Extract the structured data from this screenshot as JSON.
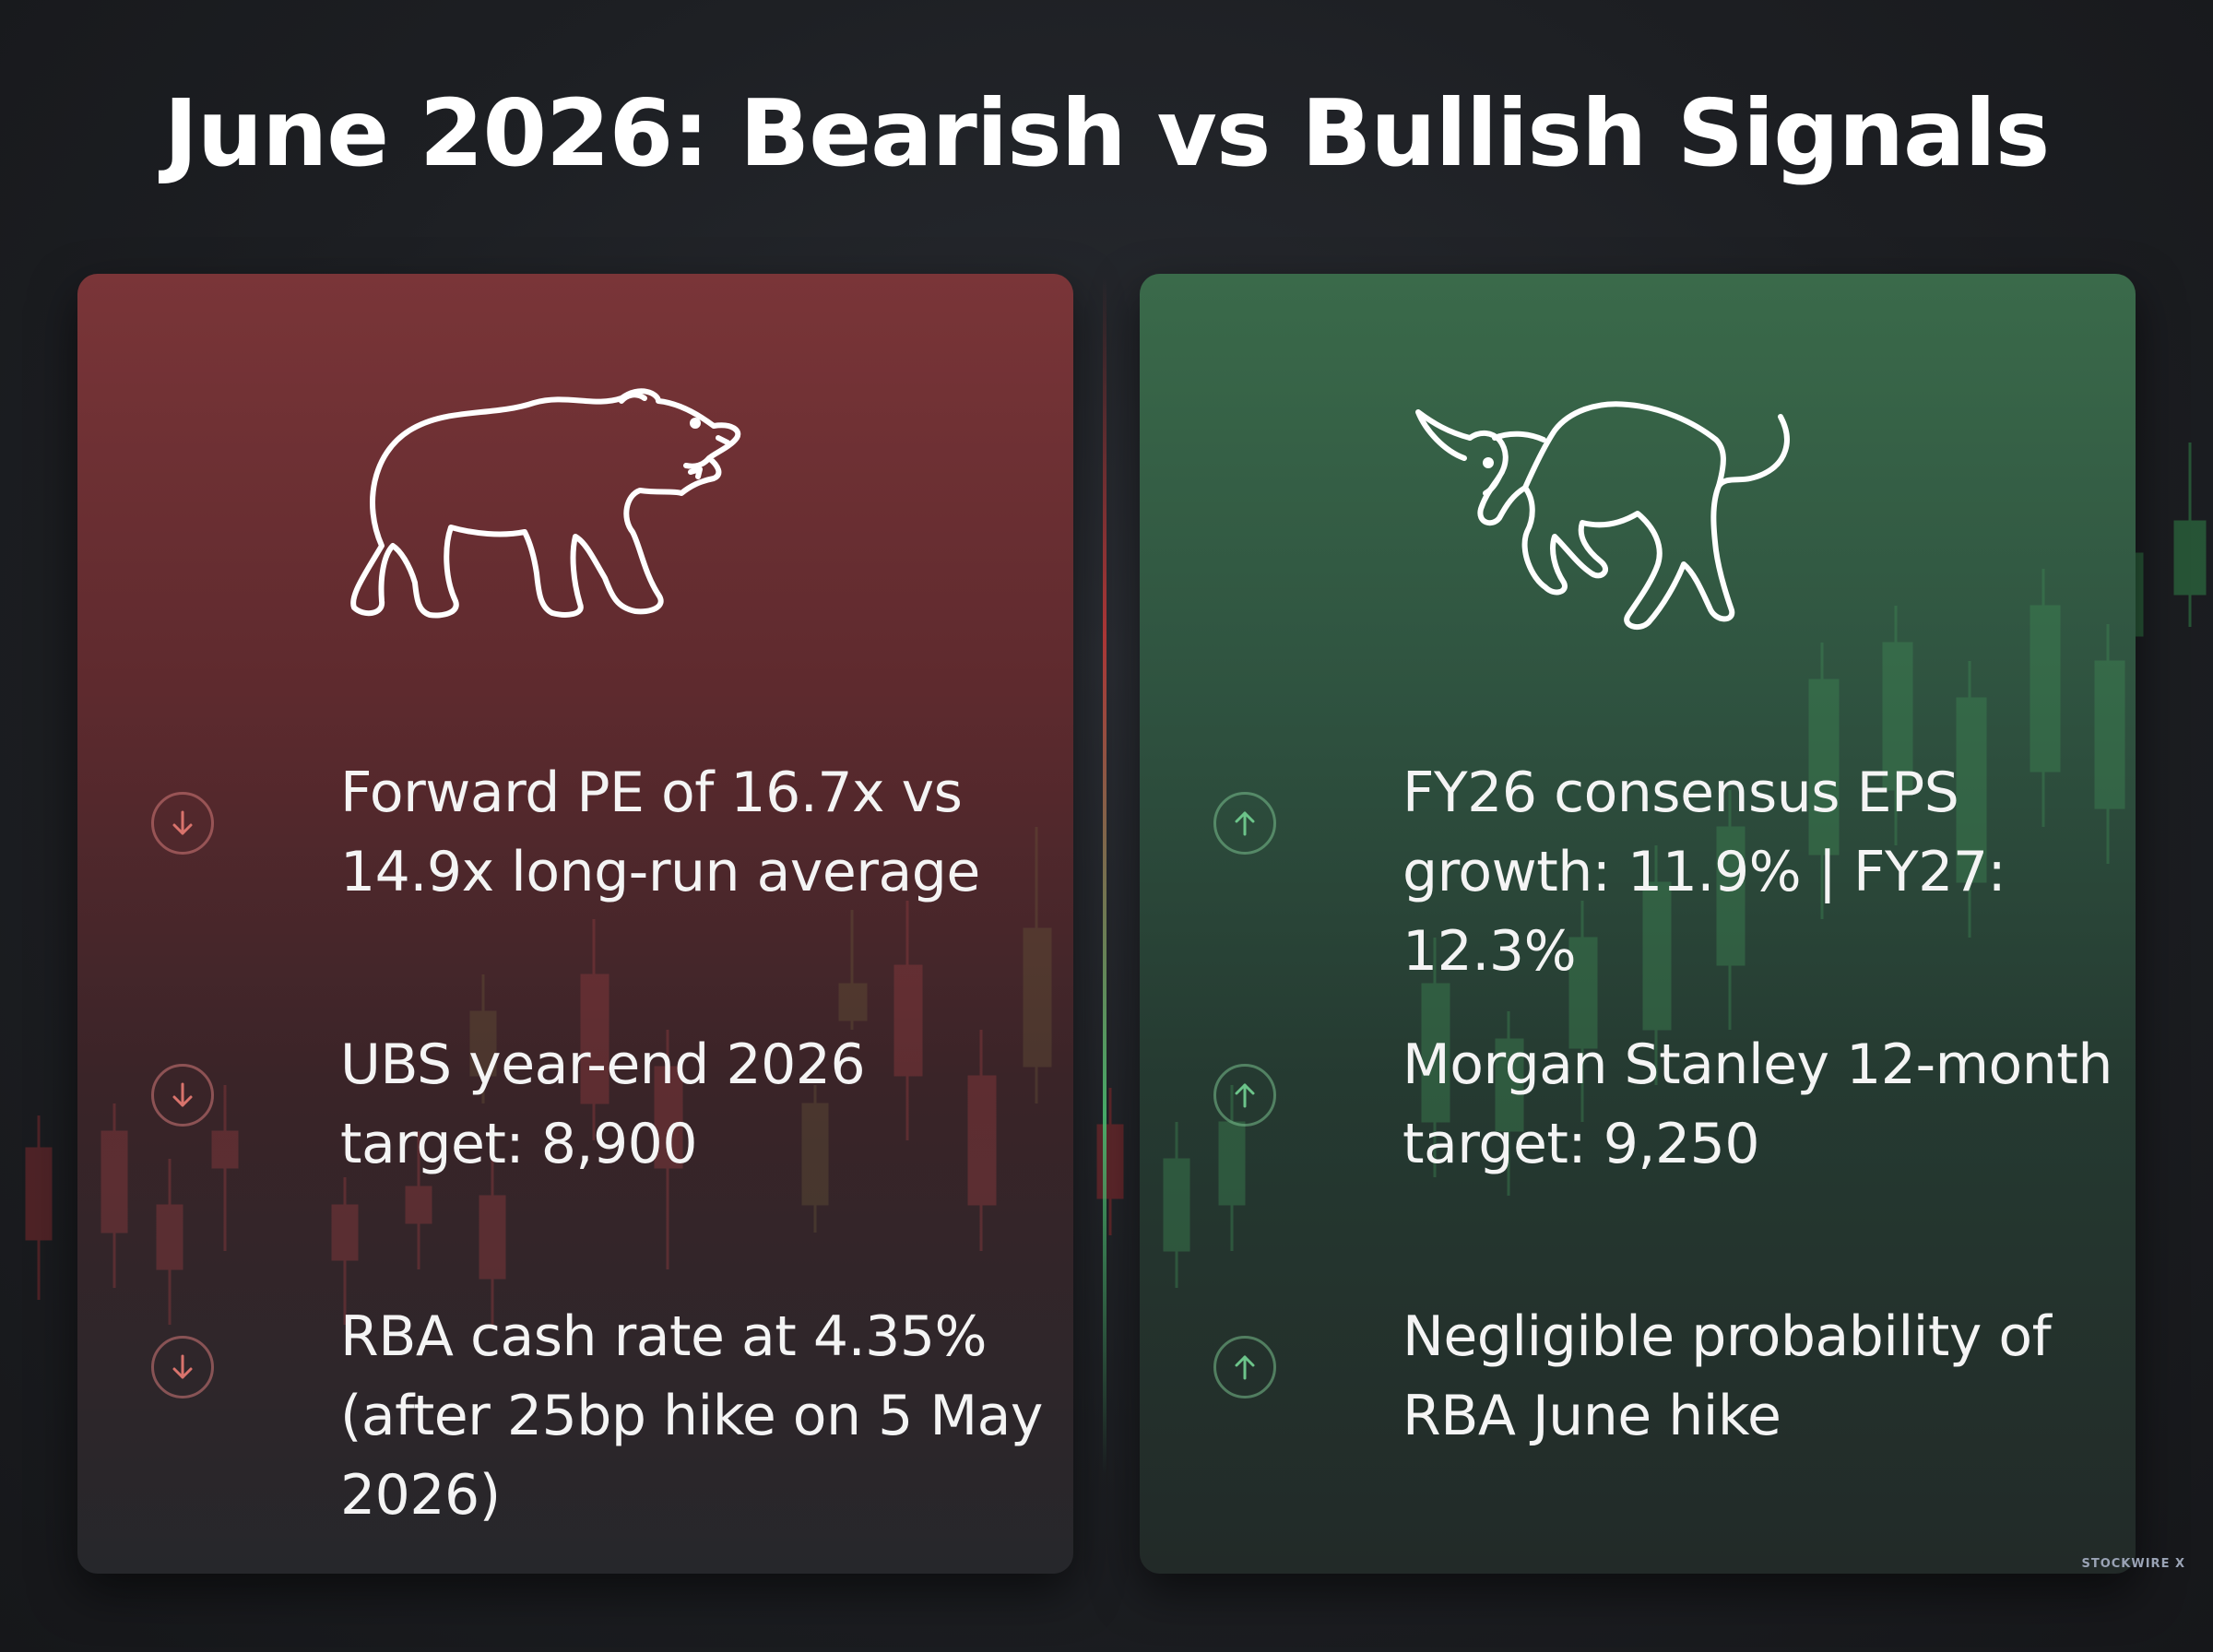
{
  "title": "June 2026: Bearish vs Bullish Signals",
  "colors": {
    "bear_accent": "#7a3538",
    "bull_accent": "#3a6a4a",
    "bear_icon": "#e07a72",
    "bull_icon": "#6cc48a",
    "background": "#1d1f23"
  },
  "bear": {
    "icon": "bear-outline-icon",
    "items": [
      {
        "icon": "arrow-down-icon",
        "text": "Forward PE of 16.7x vs 14.9x long-run average"
      },
      {
        "icon": "arrow-down-icon",
        "text": "UBS year-end 2026 target: 8,900"
      },
      {
        "icon": "arrow-down-icon",
        "text": "RBA cash rate at 4.35% (after 25bp hike on 5 May 2026)"
      }
    ]
  },
  "bull": {
    "icon": "bull-outline-icon",
    "items": [
      {
        "icon": "arrow-up-icon",
        "text": "FY26 consensus EPS growth: 11.9% | FY27: 12.3%"
      },
      {
        "icon": "arrow-up-icon",
        "text": "Morgan Stanley 12-month target: 9,250"
      },
      {
        "icon": "arrow-up-icon",
        "text": "Negligible probability of RBA June hike"
      }
    ]
  },
  "watermark": "STOCKWIRE X"
}
